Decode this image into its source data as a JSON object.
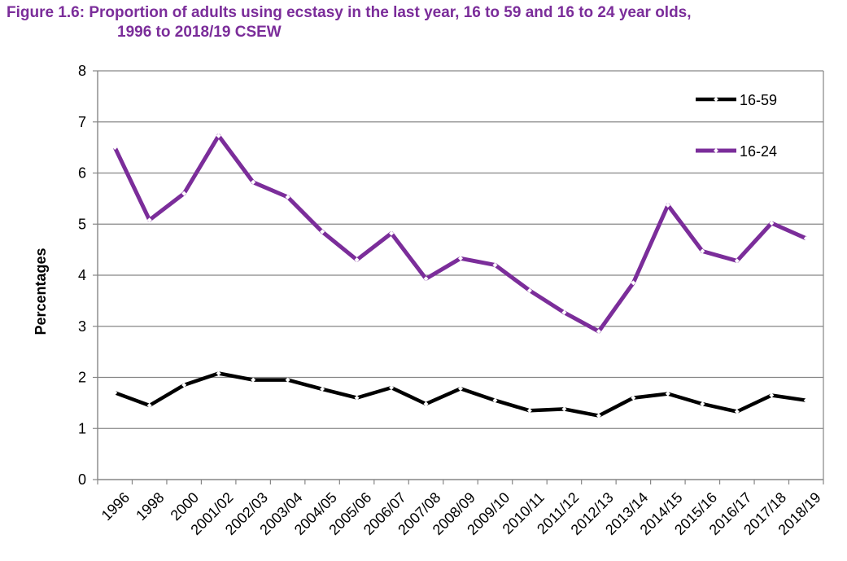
{
  "chart_data": {
    "type": "line",
    "title_line1": "Figure 1.6: Proportion of adults using ecstasy in the last year, 16 to 59 and 16 to 24 year olds,",
    "title_line2": "1996 to 2018/19 CSEW",
    "ylabel": "Percentages",
    "xlabel": "",
    "ylim": [
      0,
      8
    ],
    "yticks": [
      "0",
      "1",
      "2",
      "3",
      "4",
      "5",
      "6",
      "7",
      "8"
    ],
    "grid": true,
    "legend_position": "top-right",
    "categories": [
      "1996",
      "1998",
      "2000",
      "2001/02",
      "2002/03",
      "2003/04",
      "2004/05",
      "2005/06",
      "2006/07",
      "2007/08",
      "2008/09",
      "2009/10",
      "2010/11",
      "2011/12",
      "2012/13",
      "2013/14",
      "2014/15",
      "2015/16",
      "2016/17",
      "2017/18",
      "2018/19"
    ],
    "series": [
      {
        "name": "16-59",
        "color": "#000000",
        "values": [
          1.7,
          1.45,
          1.85,
          2.08,
          1.95,
          1.95,
          1.77,
          1.6,
          1.8,
          1.48,
          1.78,
          1.55,
          1.35,
          1.38,
          1.25,
          1.6,
          1.68,
          1.48,
          1.33,
          1.65,
          1.55
        ]
      },
      {
        "name": "16-24",
        "color": "#7b2d9a",
        "values": [
          6.5,
          5.08,
          5.6,
          6.73,
          5.82,
          5.53,
          4.85,
          4.3,
          4.82,
          3.93,
          4.33,
          4.2,
          3.7,
          3.27,
          2.9,
          3.85,
          5.37,
          4.47,
          4.28,
          5.02,
          4.72
        ]
      }
    ]
  }
}
